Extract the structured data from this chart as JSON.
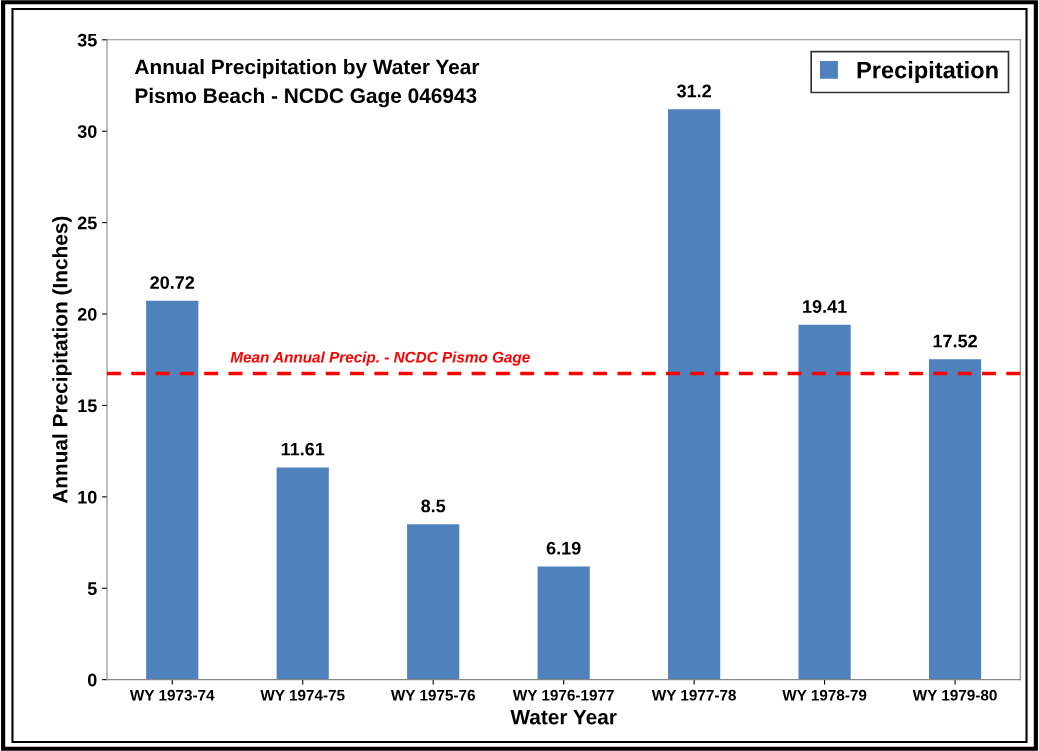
{
  "chart_data": {
    "type": "bar",
    "title": "Annual Precipitation by Water Year",
    "subtitle": "Pismo Beach - NCDC Gage 046943",
    "xlabel": "Water Year",
    "ylabel": "Annual Precipitation (Inches)",
    "categories": [
      "WY 1973-74",
      "WY 1974-75",
      "WY 1975-76",
      "WY 1976-1977",
      "WY 1977-78",
      "WY 1978-79",
      "WY 1979-80"
    ],
    "series": [
      {
        "name": "Precipitation",
        "color": "#4f81bd",
        "values": [
          20.72,
          11.61,
          8.5,
          6.19,
          31.2,
          19.41,
          17.52
        ]
      }
    ],
    "data_labels": true,
    "ylim": [
      0,
      35
    ],
    "yticks": [
      0,
      5,
      10,
      15,
      20,
      25,
      30,
      35
    ],
    "grid": false,
    "legend": "top right",
    "ref_lines": [
      {
        "axis": "y",
        "value": 16.75,
        "label": "Mean Annual Precip. - NCDC Pismo Gage",
        "color": "#ff0000",
        "line_style": "dashed"
      }
    ]
  }
}
